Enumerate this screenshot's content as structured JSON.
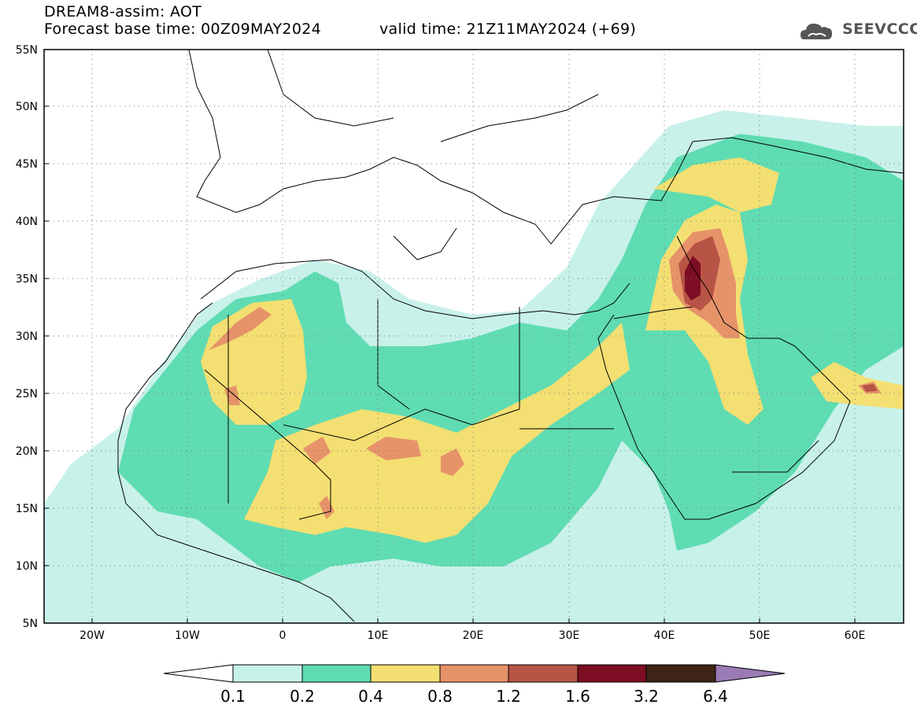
{
  "header": {
    "line1": "DREAM8-assim: AOT",
    "line2": "Forecast base time: 00Z09MAY2024",
    "line3": "valid time: 21Z11MAY2024 (+69)",
    "logo_text": "SEEVCCC",
    "logo_icon": "cloud-icon"
  },
  "map": {
    "lat_range": [
      5,
      55
    ],
    "lon_range": [
      -25,
      65
    ],
    "lat_ticks": [
      "5N",
      "10N",
      "15N",
      "20N",
      "25N",
      "30N",
      "35N",
      "40N",
      "45N",
      "50N",
      "55N"
    ],
    "lon_ticks": [
      "20W",
      "10W",
      "0",
      "10E",
      "20E",
      "30E",
      "40E",
      "50E",
      "60E"
    ],
    "lon_tick_values": [
      -20,
      -10,
      0,
      10,
      20,
      30,
      40,
      50,
      60
    ],
    "grid": "dotted"
  },
  "colorbar": {
    "labels": [
      "0.1",
      "0.2",
      "0.4",
      "0.8",
      "1.2",
      "1.6",
      "3.2",
      "6.4"
    ],
    "colors": [
      "#c8f1ea",
      "#5fdcb2",
      "#f3df72",
      "#e7936a",
      "#b85445",
      "#7d0d22",
      "#3d2416",
      "#9a7bb5"
    ]
  }
}
